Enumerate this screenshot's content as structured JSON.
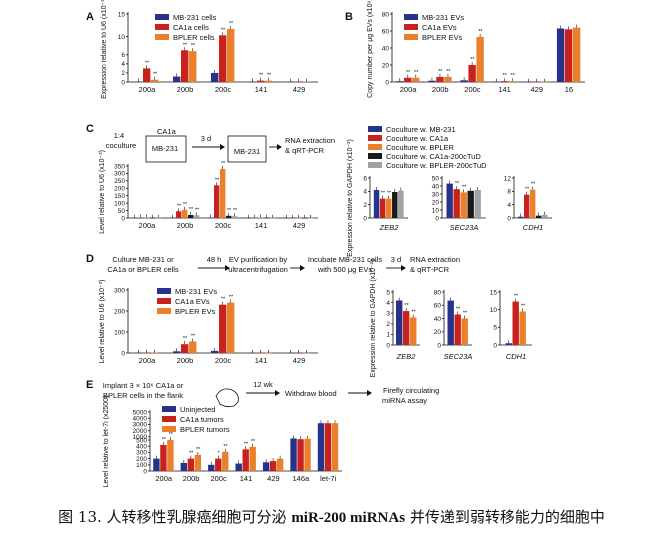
{
  "colors": {
    "blue": "#27338a",
    "red": "#c8221c",
    "orange": "#ea7f2c",
    "black": "#1a1a1a",
    "grey": "#a2a2a2"
  },
  "caption": {
    "prefix": "图 13. 人转移性乳腺癌细胞可分泌 ",
    "bold": "miR-200 miRNAs",
    "suffix": " 并传递到弱转移能力的细胞中"
  },
  "panels": {
    "A": {
      "letter": "A"
    },
    "B": {
      "letter": "B"
    },
    "C": {
      "letter": "C",
      "step1": "1:4",
      "step1b": "coculture",
      "box_top": "CA1a",
      "box_bottom": "MB-231",
      "arrow1": "3 d",
      "box2": "MB-231",
      "out1": "RNA extraction",
      "out2": "& qRT-PCR"
    },
    "D": {
      "letter": "D",
      "s1a": "Culture MB-231 or",
      "s1b": "CA1a or BPLER cells",
      "a1": "48 h",
      "s2a": "EV purification by",
      "s2b": "ultracentrifugation",
      "s3a": "Incubate MB-231 cells",
      "s3b": "with 500 μg EVs",
      "a3": "3 d",
      "s4a": "RNA extraction",
      "s4b": "& qRT-PCR"
    },
    "E": {
      "letter": "E",
      "s1a": "Implant 3 × 10⁶ CA1a or",
      "s1b": "BPLER cells in the flank",
      "a1": "12 wk",
      "s2": "Withdraw blood",
      "s3a": "Firefly circulating",
      "s3b": "miRNA assay"
    }
  },
  "chart_data": [
    {
      "id": "A",
      "type": "bar",
      "ylabel": "Expression relative to U6 (x10⁻³)",
      "ylim": [
        0,
        15
      ],
      "yticks": [
        "0",
        "2",
        "4",
        "6",
        "10",
        "15"
      ],
      "categories": [
        "200a",
        "200b",
        "200c",
        "141",
        "429"
      ],
      "series": [
        {
          "name": "MB-231 cells",
          "color": "blue",
          "values": [
            0.1,
            1.2,
            2.0,
            0.1,
            0.05
          ]
        },
        {
          "name": "CA1a cells",
          "color": "red",
          "values": [
            3.0,
            7.0,
            10.3,
            0.3,
            0.1
          ]
        },
        {
          "name": "BPLER cells",
          "color": "orange",
          "values": [
            0.5,
            6.8,
            11.7,
            0.3,
            0.1
          ]
        }
      ],
      "stars": [
        [
          "",
          "**",
          "**"
        ],
        [
          "",
          "**",
          "**"
        ],
        [
          "",
          "**",
          "**"
        ],
        [
          "",
          "**",
          "**"
        ],
        [
          "",
          "",
          ""
        ]
      ]
    },
    {
      "id": "B",
      "type": "bar",
      "ylabel": "Copy number per μg EVs (x10⁹)",
      "ylim": [
        0,
        80
      ],
      "yticks": [
        "0",
        "20",
        "40",
        "60",
        "80"
      ],
      "categories": [
        "200a",
        "200b",
        "200c",
        "141",
        "429",
        "16"
      ],
      "series": [
        {
          "name": "MB-231 EVs",
          "color": "blue",
          "values": [
            1.0,
            1.5,
            2.0,
            0.5,
            0.3,
            63
          ]
        },
        {
          "name": "CA1a EVs",
          "color": "red",
          "values": [
            5.0,
            6.0,
            20.0,
            1.0,
            0.3,
            62
          ]
        },
        {
          "name": "BPLER EVs",
          "color": "orange",
          "values": [
            5.0,
            6.0,
            53.0,
            1.0,
            0.3,
            64
          ]
        }
      ],
      "stars": [
        [
          "",
          "**",
          "**"
        ],
        [
          "",
          "**",
          "**"
        ],
        [
          "",
          "**",
          "**"
        ],
        [
          "",
          "**",
          "**"
        ],
        [
          "",
          "",
          ""
        ],
        [
          "",
          "",
          ""
        ]
      ]
    },
    {
      "id": "C-main",
      "type": "bar",
      "ylabel": "Level relative to U6 (x10⁻³)",
      "ylim": [
        0,
        350
      ],
      "yticks": [
        "0",
        "50",
        "100",
        "150",
        "200",
        "250",
        "300",
        "350"
      ],
      "categories": [
        "200a",
        "200b",
        "200c",
        "141",
        "429"
      ],
      "series": [
        {
          "name": "Coculture w. MB-231",
          "color": "blue",
          "values": [
            1,
            2,
            3,
            0.5,
            0.5
          ]
        },
        {
          "name": "Coculture w. CA1a",
          "color": "red",
          "values": [
            3,
            45,
            220,
            3,
            0.5
          ]
        },
        {
          "name": "Coculture w. BPLER",
          "color": "orange",
          "values": [
            4,
            55,
            330,
            4,
            0.5
          ]
        },
        {
          "name": "Coculture w. CA1a-200cTuD",
          "color": "black",
          "values": [
            2,
            20,
            15,
            2,
            0.5
          ]
        },
        {
          "name": "Coculture w. BPLER-200cTuD",
          "color": "grey",
          "values": [
            2,
            18,
            12,
            2,
            0.5
          ]
        }
      ],
      "stars": [
        [
          "",
          "",
          "",
          "",
          ""
        ],
        [
          "",
          "**",
          "**",
          "**",
          "**"
        ],
        [
          "",
          "**",
          "**",
          "**",
          "**"
        ],
        [
          "",
          "",
          "",
          "",
          ""
        ],
        [
          "",
          "",
          "",
          "",
          ""
        ]
      ]
    },
    {
      "id": "C-ZEB2",
      "type": "bar",
      "ylabel": "Expression relative to GAPDH (x10⁻²)",
      "ylim": [
        0,
        6
      ],
      "yticks": [
        "0",
        "2",
        "4",
        "6"
      ],
      "categories": [
        "ZEB2"
      ],
      "series_values": [
        4.2,
        2.9,
        2.9,
        3.9,
        4.1
      ],
      "stars_row": [
        "",
        "**",
        "**",
        "",
        ""
      ]
    },
    {
      "id": "C-SEC23A",
      "type": "bar",
      "ylim": [
        0,
        50
      ],
      "yticks": [
        "0",
        "10",
        "20",
        "30",
        "40",
        "50"
      ],
      "categories": [
        "SEC23A"
      ],
      "series_values": [
        43,
        36,
        32,
        34,
        35
      ],
      "stars_row": [
        "",
        "**",
        "**",
        "",
        ""
      ]
    },
    {
      "id": "C-CDH1",
      "type": "bar",
      "ylim": [
        0,
        12
      ],
      "yticks": [
        "0",
        "4",
        "8",
        "12"
      ],
      "categories": [
        "CDH1"
      ],
      "series_values": [
        0.4,
        7.0,
        8.5,
        0.7,
        1.0
      ],
      "stars_row": [
        "",
        "**",
        "**",
        "",
        ""
      ]
    },
    {
      "id": "D-main",
      "type": "bar",
      "ylabel": "Level relative to U6 (x10⁻³)",
      "ylim": [
        0,
        300
      ],
      "yticks": [
        "0",
        "100",
        "200",
        "300"
      ],
      "categories": [
        "200a",
        "200b",
        "200c",
        "141",
        "429"
      ],
      "series": [
        {
          "name": "MB-231 EVs",
          "color": "blue",
          "values": [
            1,
            8,
            10,
            0.5,
            0.3
          ]
        },
        {
          "name": "CA1a EVs",
          "color": "red",
          "values": [
            2,
            42,
            230,
            1,
            0.5
          ]
        },
        {
          "name": "BPLER EVs",
          "color": "orange",
          "values": [
            2,
            55,
            240,
            1,
            0.5
          ]
        }
      ],
      "stars": [
        [
          "",
          "",
          ""
        ],
        [
          "",
          "**",
          "**"
        ],
        [
          "",
          "**",
          "**"
        ],
        [
          "",
          "",
          ""
        ],
        [
          "",
          "",
          ""
        ]
      ]
    },
    {
      "id": "D-ZEB2",
      "type": "bar",
      "ylabel": "Expression relative to GAPDH (x10⁻²)",
      "ylim": [
        0,
        5
      ],
      "yticks": [
        "0",
        "1",
        "2",
        "3",
        "4",
        "5"
      ],
      "categories": [
        "ZEB2"
      ],
      "series_values": [
        4.2,
        3.2,
        2.6
      ],
      "stars_row": [
        "",
        "**",
        "**"
      ]
    },
    {
      "id": "D-SEC23A",
      "type": "bar",
      "ylim": [
        0,
        80
      ],
      "yticks": [
        "0",
        "20",
        "40",
        "60",
        "80"
      ],
      "categories": [
        "SEC23A"
      ],
      "series_values": [
        67,
        46,
        40
      ],
      "stars_row": [
        "",
        "**",
        "**"
      ]
    },
    {
      "id": "D-CDH1",
      "type": "bar",
      "ylim": [
        0,
        15
      ],
      "yticks": [
        "0",
        "5",
        "10",
        "15"
      ],
      "categories": [
        "CDH1"
      ],
      "series_values": [
        0.5,
        12.3,
        9.5
      ],
      "stars_row": [
        "",
        "**",
        "**"
      ]
    },
    {
      "id": "E",
      "type": "bar",
      "ylabel": "Level relative to let-7i (x2500)",
      "ylim": [
        0,
        5000
      ],
      "yticks": [
        "0",
        "100",
        "200",
        "300",
        "400",
        "500",
        "1000",
        "2000",
        "3000",
        "4000",
        "5000"
      ],
      "categories": [
        "200a",
        "200b",
        "200c",
        "141",
        "429",
        "146a",
        "let-7i"
      ],
      "series": [
        {
          "name": "Uninjected",
          "color": "blue",
          "values": [
            200,
            130,
            100,
            120,
            140,
            750,
            3200
          ]
        },
        {
          "name": "CA1a tumors",
          "color": "red",
          "values": [
            420,
            200,
            200,
            350,
            160,
            630,
            3200
          ]
        },
        {
          "name": "BPLER tumors",
          "color": "orange",
          "values": [
            500,
            260,
            310,
            390,
            200,
            700,
            3200
          ]
        }
      ],
      "stars": [
        [
          "",
          "**",
          "**"
        ],
        [
          "",
          "**",
          "**"
        ],
        [
          "",
          "*",
          "**"
        ],
        [
          "",
          "**",
          "**"
        ],
        [
          "",
          "",
          ""
        ],
        [
          "",
          "",
          ""
        ],
        [
          "",
          "",
          ""
        ]
      ]
    }
  ]
}
